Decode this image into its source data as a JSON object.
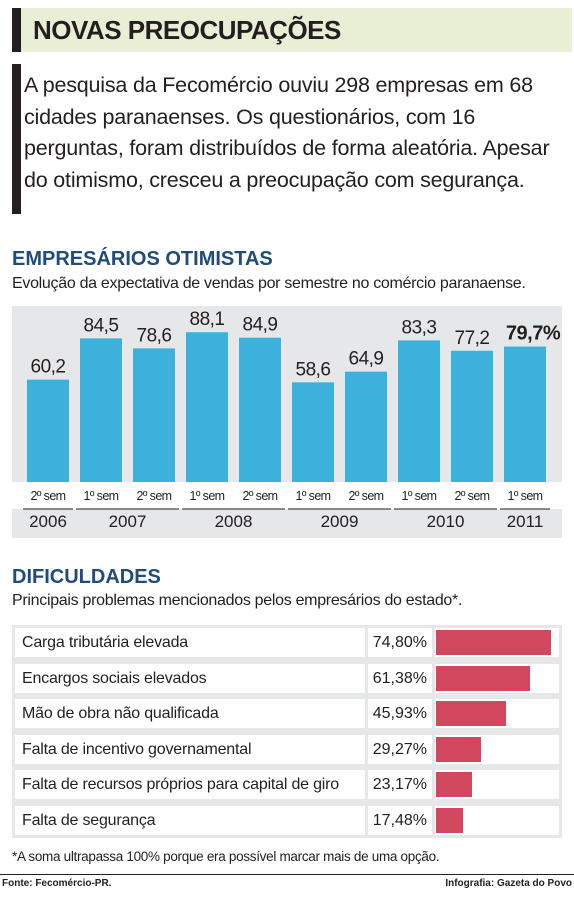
{
  "header": {
    "title": "NOVAS PREOCUPAÇÕES"
  },
  "intro": {
    "text": "A pesquisa da Fecomércio ouviu 298 empresas em 68 cidades paranaenses. Os questionários, com 16 perguntas, foram distribuídos de forma aleatória. Apesar do otimismo, cresceu a preocupação com segurança."
  },
  "chart_section": {
    "title": "EMPRESÁRIOS OTIMISTAS",
    "subtitle": "Evolução da expectativa de vendas por semestre no comércio paranaense."
  },
  "chart_data": [
    {
      "type": "bar",
      "title": "EMPRESÁRIOS OTIMISTAS",
      "subtitle": "Evolução da expectativa de vendas por semestre no comércio paranaense.",
      "categories": [
        "2º sem",
        "1º sem",
        "2º sem",
        "1º sem",
        "2º sem",
        "1º sem",
        "2º sem",
        "1º sem",
        "2º sem",
        "1º sem"
      ],
      "years": [
        {
          "label": "2006",
          "count": 1
        },
        {
          "label": "2007",
          "count": 2
        },
        {
          "label": "2008",
          "count": 2
        },
        {
          "label": "2009",
          "count": 2
        },
        {
          "label": "2010",
          "count": 2
        },
        {
          "label": "2011",
          "count": 1
        }
      ],
      "values": [
        60.2,
        84.5,
        78.6,
        88.1,
        84.9,
        58.6,
        64.9,
        83.3,
        77.2,
        79.7
      ],
      "value_labels": [
        "60,2",
        "84,5",
        "78,6",
        "88,1",
        "84,9",
        "58,6",
        "64,9",
        "83,3",
        "77,2",
        "79,7%"
      ],
      "ylim": [
        0,
        100
      ],
      "color": "#3cb1dc"
    },
    {
      "type": "bar",
      "title": "DIFICULDADES",
      "subtitle": "Principais problemas mencionados pelos empresários do estado*.",
      "categories": [
        "Carga tributária elevada",
        "Encargos sociais elevados",
        "Mão de obra não qualificada",
        "Falta de incentivo governamental",
        "Falta de recursos próprios para capital de giro",
        "Falta de segurança"
      ],
      "values": [
        74.8,
        61.38,
        45.93,
        29.27,
        23.17,
        17.48
      ],
      "value_labels": [
        "74,80%",
        "61,38%",
        "45,93%",
        "29,27%",
        "23,17%",
        "17,48%"
      ],
      "xlim": [
        0,
        77
      ],
      "color": "#d1475d"
    }
  ],
  "table_section": {
    "title": "DIFICULDADES",
    "subtitle": "Principais problemas mencionados pelos empresários do estado*."
  },
  "footnote": "*A soma ultrapassa 100% porque era possível marcar mais de uma opção.",
  "source": "Fonte: Fecomércio-PR.",
  "credit": "Infografia: Gazeta do Povo"
}
